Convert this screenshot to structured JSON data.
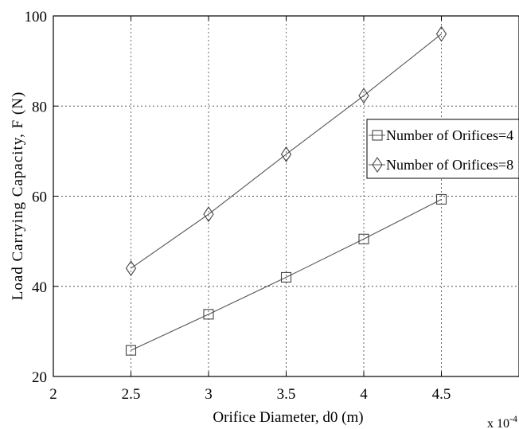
{
  "chart_data": {
    "type": "line",
    "xlabel": "Orifice Diameter, d0 (m)",
    "ylabel": "Load Carrying Capacity, F (N)",
    "x_exponent_label": "x 10",
    "x_exponent_suffix": "-4",
    "xlim": [
      2,
      5
    ],
    "ylim": [
      20,
      100
    ],
    "x_ticks": [
      2,
      2.5,
      3,
      3.5,
      4,
      4.5
    ],
    "x_tick_labels": [
      "2",
      "2.5",
      "3",
      "3.5",
      "4",
      "4.5"
    ],
    "y_ticks": [
      20,
      40,
      60,
      80,
      100
    ],
    "y_tick_labels": [
      "20",
      "40",
      "60",
      "80",
      "100"
    ],
    "grid": true,
    "legend_position": "right",
    "x": [
      2.5,
      3,
      3.5,
      4,
      4.5
    ],
    "series": [
      {
        "name": "Number of Orifices=4",
        "marker": "square",
        "values": [
          25.8,
          33.8,
          42.0,
          50.5,
          59.3
        ]
      },
      {
        "name": "Number of Orifices=8",
        "marker": "diamond",
        "values": [
          44.0,
          56.0,
          69.3,
          82.3,
          96.0
        ]
      }
    ],
    "colors": {
      "line": "#555555",
      "marker": "#444444",
      "grid": "#555555"
    }
  }
}
